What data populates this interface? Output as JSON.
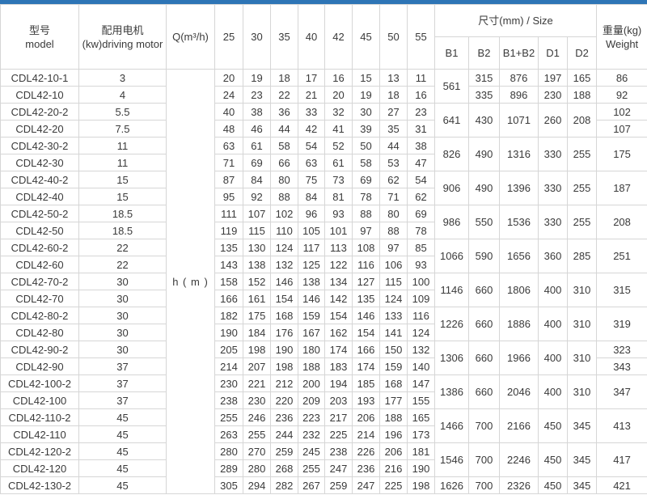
{
  "accent_color": "#2e75b6",
  "table": {
    "headers": {
      "model_zh": "型号",
      "model_en": "model",
      "motor_zh": "配用电机",
      "motor_en": "(kw)driving motor",
      "q_label": "Q(m³/h)",
      "flow_columns": [
        "25",
        "30",
        "35",
        "40",
        "42",
        "45",
        "50",
        "55"
      ],
      "size_label": "尺寸(mm) / Size",
      "size_columns": [
        "B1",
        "B2",
        "B1+B2",
        "D1",
        "D2"
      ],
      "weight_zh": "重量(kg)",
      "weight_en": "Weight"
    },
    "h_unit_label": "h ( m )",
    "rows": [
      {
        "model": "CDL42-10-1",
        "motor": "3",
        "h": [
          20,
          19,
          18,
          17,
          16,
          15,
          13,
          11
        ],
        "size": [
          [
            561,
            2
          ],
          [
            315,
            1
          ],
          [
            876,
            1
          ],
          [
            197,
            1
          ],
          [
            165,
            1
          ]
        ],
        "weight": [
          86,
          1
        ]
      },
      {
        "model": "CDL42-10",
        "motor": "4",
        "h": [
          24,
          23,
          22,
          21,
          20,
          19,
          18,
          16
        ],
        "size": [
          [
            335,
            1
          ],
          [
            896,
            1
          ],
          [
            230,
            1
          ],
          [
            188,
            1
          ]
        ],
        "weight": [
          92,
          1
        ]
      },
      {
        "model": "CDL42-20-2",
        "motor": "5.5",
        "h": [
          40,
          38,
          36,
          33,
          32,
          30,
          27,
          23
        ],
        "size": [
          [
            641,
            2
          ],
          [
            430,
            2
          ],
          [
            1071,
            2
          ],
          [
            260,
            2
          ],
          [
            208,
            2
          ]
        ],
        "weight": [
          102,
          1
        ]
      },
      {
        "model": "CDL42-20",
        "motor": "7.5",
        "h": [
          48,
          46,
          44,
          42,
          41,
          39,
          35,
          31
        ],
        "size": [],
        "weight": [
          107,
          1
        ]
      },
      {
        "model": "CDL42-30-2",
        "motor": "11",
        "h": [
          63,
          61,
          58,
          54,
          52,
          50,
          44,
          38
        ],
        "size": [
          [
            826,
            2
          ],
          [
            490,
            2
          ],
          [
            1316,
            2
          ],
          [
            330,
            2
          ],
          [
            255,
            2
          ]
        ],
        "weight": [
          175,
          2
        ]
      },
      {
        "model": "CDL42-30",
        "motor": "11",
        "h": [
          71,
          69,
          66,
          63,
          61,
          58,
          53,
          47
        ],
        "size": [],
        "weight": null
      },
      {
        "model": "CDL42-40-2",
        "motor": "15",
        "h": [
          87,
          84,
          80,
          75,
          73,
          69,
          62,
          54
        ],
        "size": [
          [
            906,
            2
          ],
          [
            490,
            2
          ],
          [
            1396,
            2
          ],
          [
            330,
            2
          ],
          [
            255,
            2
          ]
        ],
        "weight": [
          187,
          2
        ]
      },
      {
        "model": "CDL42-40",
        "motor": "15",
        "h": [
          95,
          92,
          88,
          84,
          81,
          78,
          71,
          62
        ],
        "size": [],
        "weight": null
      },
      {
        "model": "CDL42-50-2",
        "motor": "18.5",
        "h": [
          111,
          107,
          102,
          96,
          93,
          88,
          80,
          69
        ],
        "size": [
          [
            986,
            2
          ],
          [
            550,
            2
          ],
          [
            1536,
            2
          ],
          [
            330,
            2
          ],
          [
            255,
            2
          ]
        ],
        "weight": [
          208,
          2
        ]
      },
      {
        "model": "CDL42-50",
        "motor": "18.5",
        "h": [
          119,
          115,
          110,
          105,
          101,
          97,
          88,
          78
        ],
        "size": [],
        "weight": null
      },
      {
        "model": "CDL42-60-2",
        "motor": "22",
        "h": [
          135,
          130,
          124,
          117,
          113,
          108,
          97,
          85
        ],
        "size": [
          [
            1066,
            2
          ],
          [
            590,
            2
          ],
          [
            1656,
            2
          ],
          [
            360,
            2
          ],
          [
            285,
            2
          ]
        ],
        "weight": [
          251,
          2
        ]
      },
      {
        "model": "CDL42-60",
        "motor": "22",
        "h": [
          143,
          138,
          132,
          125,
          122,
          116,
          106,
          93
        ],
        "size": [],
        "weight": null
      },
      {
        "model": "CDL42-70-2",
        "motor": "30",
        "h": [
          158,
          152,
          146,
          138,
          134,
          127,
          115,
          100
        ],
        "size": [
          [
            1146,
            2
          ],
          [
            660,
            2
          ],
          [
            1806,
            2
          ],
          [
            400,
            2
          ],
          [
            310,
            2
          ]
        ],
        "weight": [
          315,
          2
        ]
      },
      {
        "model": "CDL42-70",
        "motor": "30",
        "h": [
          166,
          161,
          154,
          146,
          142,
          135,
          124,
          109
        ],
        "size": [],
        "weight": null
      },
      {
        "model": "CDL42-80-2",
        "motor": "30",
        "h": [
          182,
          175,
          168,
          159,
          154,
          146,
          133,
          116
        ],
        "size": [
          [
            1226,
            2
          ],
          [
            660,
            2
          ],
          [
            1886,
            2
          ],
          [
            400,
            2
          ],
          [
            310,
            2
          ]
        ],
        "weight": [
          319,
          2
        ]
      },
      {
        "model": "CDL42-80",
        "motor": "30",
        "h": [
          190,
          184,
          176,
          167,
          162,
          154,
          141,
          124
        ],
        "size": [],
        "weight": null
      },
      {
        "model": "CDL42-90-2",
        "motor": "30",
        "h": [
          205,
          198,
          190,
          180,
          174,
          166,
          150,
          132
        ],
        "size": [
          [
            1306,
            2
          ],
          [
            660,
            2
          ],
          [
            1966,
            2
          ],
          [
            400,
            2
          ],
          [
            310,
            2
          ]
        ],
        "weight": [
          323,
          1
        ]
      },
      {
        "model": "CDL42-90",
        "motor": "37",
        "h": [
          214,
          207,
          198,
          188,
          183,
          174,
          159,
          140
        ],
        "size": [],
        "weight": [
          343,
          1
        ]
      },
      {
        "model": "CDL42-100-2",
        "motor": "37",
        "h": [
          230,
          221,
          212,
          200,
          194,
          185,
          168,
          147
        ],
        "size": [
          [
            1386,
            2
          ],
          [
            660,
            2
          ],
          [
            2046,
            2
          ],
          [
            400,
            2
          ],
          [
            310,
            2
          ]
        ],
        "weight": [
          347,
          2
        ]
      },
      {
        "model": "CDL42-100",
        "motor": "37",
        "h": [
          238,
          230,
          220,
          209,
          203,
          193,
          177,
          155
        ],
        "size": [],
        "weight": null
      },
      {
        "model": "CDL42-110-2",
        "motor": "45",
        "h": [
          255,
          246,
          236,
          223,
          217,
          206,
          188,
          165
        ],
        "size": [
          [
            1466,
            2
          ],
          [
            700,
            2
          ],
          [
            2166,
            2
          ],
          [
            450,
            2
          ],
          [
            345,
            2
          ]
        ],
        "weight": [
          413,
          2
        ]
      },
      {
        "model": "CDL42-110",
        "motor": "45",
        "h": [
          263,
          255,
          244,
          232,
          225,
          214,
          196,
          173
        ],
        "size": [],
        "weight": null
      },
      {
        "model": "CDL42-120-2",
        "motor": "45",
        "h": [
          280,
          270,
          259,
          245,
          238,
          226,
          206,
          181
        ],
        "size": [
          [
            1546,
            2
          ],
          [
            700,
            2
          ],
          [
            2246,
            2
          ],
          [
            450,
            2
          ],
          [
            345,
            2
          ]
        ],
        "weight": [
          417,
          2
        ]
      },
      {
        "model": "CDL42-120",
        "motor": "45",
        "h": [
          289,
          280,
          268,
          255,
          247,
          236,
          216,
          190
        ],
        "size": [],
        "weight": null
      },
      {
        "model": "CDL42-130-2",
        "motor": "45",
        "h": [
          305,
          294,
          282,
          267,
          259,
          247,
          225,
          198
        ],
        "size": [
          [
            1626,
            1
          ],
          [
            700,
            1
          ],
          [
            2326,
            1
          ],
          [
            450,
            1
          ],
          [
            345,
            1
          ]
        ],
        "weight": [
          421,
          1
        ]
      }
    ]
  }
}
